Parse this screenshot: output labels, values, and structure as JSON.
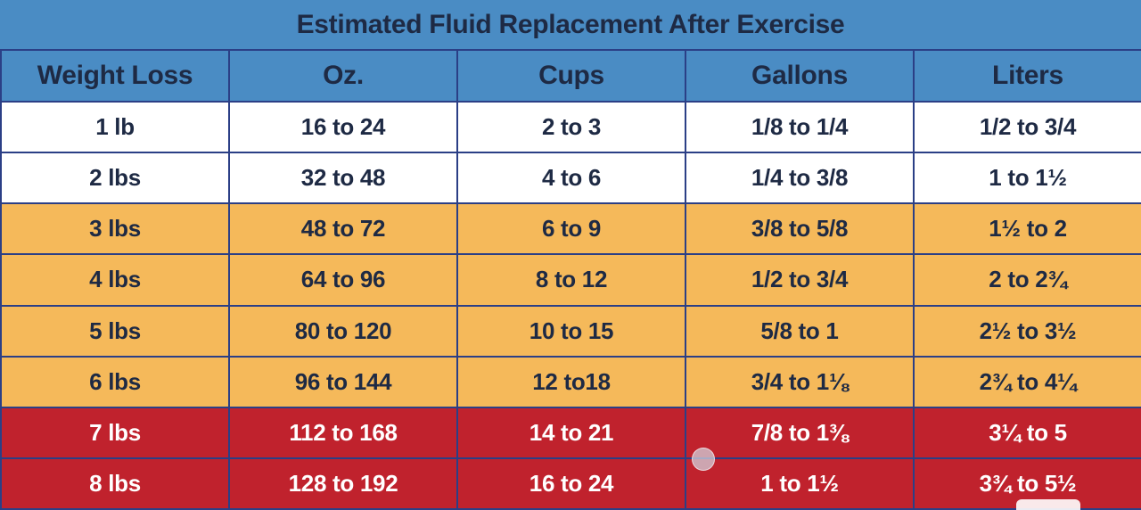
{
  "title": "Estimated Fluid Replacement After Exercise",
  "colors": {
    "header": "#4a8cc4",
    "low": "#ffffff",
    "mid": "#f5b95a",
    "high": "#c0222d",
    "dark_text": "#1e2a44",
    "light_text": "#ffffff"
  },
  "columns": [
    "Weight Loss",
    "Oz.",
    "Cups",
    "Gallons",
    "Liters"
  ],
  "rows": [
    {
      "level": "low",
      "cells": [
        "1 lb",
        "16 to 24",
        "2 to 3",
        "1/8 to 1/4",
        "1/2 to 3/4"
      ]
    },
    {
      "level": "low",
      "cells": [
        "2 lbs",
        "32 to 48",
        "4 to 6",
        "1/4 to 3/8",
        "1 to 1½"
      ]
    },
    {
      "level": "mid",
      "cells": [
        "3 lbs",
        "48 to 72",
        "6 to 9",
        "3/8 to 5/8",
        "1½ to 2"
      ]
    },
    {
      "level": "mid",
      "cells": [
        "4 lbs",
        "64 to 96",
        "8 to 12",
        "1/2 to 3/4",
        "2 to 2¾"
      ]
    },
    {
      "level": "mid",
      "cells": [
        "5 lbs",
        "80 to 120",
        "10 to 15",
        "5/8 to 1",
        "2½ to 3½"
      ]
    },
    {
      "level": "mid",
      "cells": [
        "6 lbs",
        "96 to 144",
        "12 to18",
        "3/4 to 1⅛",
        "2¾ to 4¼"
      ]
    },
    {
      "level": "high",
      "cells": [
        "7 lbs",
        "112 to 168",
        "14 to 21",
        "7/8 to 1⅜",
        "3¼ to 5"
      ]
    },
    {
      "level": "high",
      "cells": [
        "8 lbs",
        "128 to 192",
        "16 to 24",
        "1 to 1½",
        "3¾ to 5½"
      ]
    }
  ]
}
